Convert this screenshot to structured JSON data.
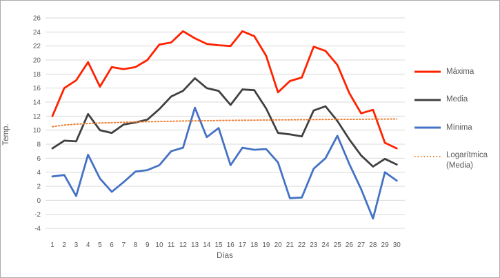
{
  "chart_data": {
    "type": "line",
    "title": "",
    "xlabel": "Días",
    "ylabel": "Temp.",
    "x_ticks": [
      1,
      2,
      3,
      4,
      5,
      6,
      7,
      8,
      9,
      10,
      11,
      12,
      13,
      14,
      15,
      16,
      17,
      18,
      19,
      20,
      21,
      22,
      23,
      24,
      25,
      26,
      27,
      28,
      29,
      30
    ],
    "ylim": [
      -4,
      26
    ],
    "ytick_step": 2,
    "grid": "horizontal",
    "gridline_color": "#d9d9d9",
    "axis_text_color": "#595959",
    "legend_position": "right",
    "series": [
      {
        "name": "Máxima",
        "color": "#ff2200",
        "style": "solid",
        "values": [
          12.0,
          16.0,
          17.1,
          19.7,
          16.2,
          19.0,
          18.7,
          19.0,
          20.0,
          22.2,
          22.5,
          24.1,
          23.1,
          22.3,
          22.1,
          22.0,
          24.1,
          23.4,
          20.6,
          15.4,
          17.0,
          17.5,
          21.9,
          21.3,
          19.3,
          15.3,
          12.4,
          12.9,
          8.2,
          7.4
        ]
      },
      {
        "name": "Media",
        "color": "#404040",
        "style": "solid",
        "values": [
          7.4,
          8.5,
          8.4,
          12.3,
          10.0,
          9.6,
          10.8,
          11.1,
          11.5,
          13.0,
          14.8,
          15.6,
          17.4,
          16.0,
          15.6,
          13.6,
          15.8,
          15.7,
          13.1,
          9.6,
          9.4,
          9.1,
          12.8,
          13.4,
          11.3,
          8.7,
          6.4,
          4.8,
          5.9,
          5.1
        ]
      },
      {
        "name": "Mínima",
        "color": "#4472c4",
        "style": "solid",
        "values": [
          3.4,
          3.6,
          0.6,
          6.5,
          3.1,
          1.2,
          2.6,
          4.1,
          4.3,
          5.0,
          7.0,
          7.5,
          13.2,
          9.0,
          10.3,
          5.0,
          7.5,
          7.2,
          7.3,
          5.4,
          0.3,
          0.4,
          4.5,
          6.0,
          9.2,
          5.2,
          1.6,
          -2.6,
          4.0,
          2.8
        ]
      },
      {
        "name": "Logarítmica (Media)",
        "color": "#ed7d31",
        "style": "dotted",
        "trend": "logarithmic",
        "values": [
          10.5,
          10.72,
          10.85,
          10.94,
          11.02,
          11.07,
          11.12,
          11.17,
          11.2,
          11.24,
          11.27,
          11.3,
          11.32,
          11.34,
          11.37,
          11.39,
          11.41,
          11.42,
          11.44,
          11.46,
          11.47,
          11.49,
          11.5,
          11.52,
          11.53,
          11.54,
          11.55,
          11.57,
          11.58,
          11.59
        ]
      }
    ]
  },
  "legend": {
    "items": [
      {
        "label": "Máxima"
      },
      {
        "label": "Media"
      },
      {
        "label": "Mínima"
      },
      {
        "label": "Logarítmica (Media)"
      }
    ]
  }
}
